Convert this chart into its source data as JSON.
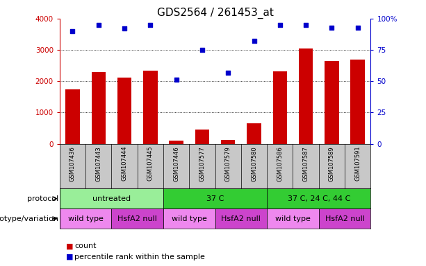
{
  "title": "GDS2564 / 261453_at",
  "samples": [
    "GSM107436",
    "GSM107443",
    "GSM107444",
    "GSM107445",
    "GSM107446",
    "GSM107577",
    "GSM107579",
    "GSM107580",
    "GSM107586",
    "GSM107587",
    "GSM107589",
    "GSM107591"
  ],
  "counts": [
    1750,
    2300,
    2120,
    2340,
    100,
    460,
    120,
    650,
    2310,
    3050,
    2650,
    2700
  ],
  "percentile_ranks": [
    90,
    95,
    92,
    95,
    51,
    75,
    57,
    82,
    95,
    95,
    93,
    93
  ],
  "ylim_left": [
    0,
    4000
  ],
  "ylim_right": [
    0,
    100
  ],
  "yticks_left": [
    0,
    1000,
    2000,
    3000,
    4000
  ],
  "yticks_right": [
    0,
    25,
    50,
    75,
    100
  ],
  "bar_color": "#cc0000",
  "dot_color": "#0000cc",
  "bg_label_row": "#c8c8c8",
  "protocol_groups": [
    {
      "label": "untreated",
      "start": 0,
      "end": 4,
      "color": "#99ee99"
    },
    {
      "label": "37 C",
      "start": 4,
      "end": 8,
      "color": "#33cc33"
    },
    {
      "label": "37 C, 24 C, 44 C",
      "start": 8,
      "end": 12,
      "color": "#33cc33"
    }
  ],
  "genotype_groups": [
    {
      "label": "wild type",
      "start": 0,
      "end": 2,
      "color": "#ee88ee"
    },
    {
      "label": "HsfA2 null",
      "start": 2,
      "end": 4,
      "color": "#cc44cc"
    },
    {
      "label": "wild type",
      "start": 4,
      "end": 6,
      "color": "#ee88ee"
    },
    {
      "label": "HsfA2 null",
      "start": 6,
      "end": 8,
      "color": "#cc44cc"
    },
    {
      "label": "wild type",
      "start": 8,
      "end": 10,
      "color": "#ee88ee"
    },
    {
      "label": "HsfA2 null",
      "start": 10,
      "end": 12,
      "color": "#cc44cc"
    }
  ],
  "protocol_row_label": "protocol",
  "genotype_row_label": "genotype/variation",
  "legend_count_label": "count",
  "legend_percentile_label": "percentile rank within the sample",
  "left_axis_color": "#cc0000",
  "right_axis_color": "#0000cc",
  "title_fontsize": 11,
  "tick_fontsize": 7.5,
  "sample_fontsize": 6,
  "annotation_fontsize": 8,
  "legend_fontsize": 8
}
